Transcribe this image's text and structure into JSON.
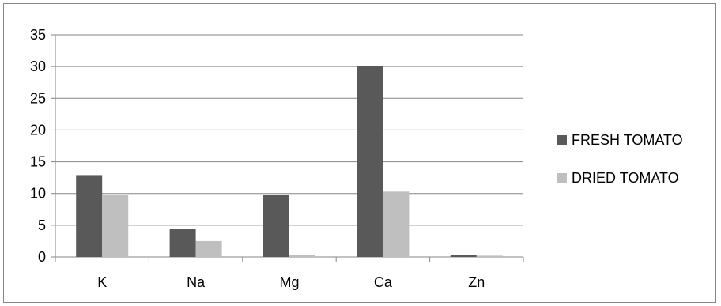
{
  "chart_data": {
    "type": "bar",
    "title": "",
    "xlabel": "",
    "ylabel": "",
    "categories": [
      "K",
      "Na",
      "Mg",
      "Ca",
      "Zn"
    ],
    "series": [
      {
        "name": "FRESH TOMATO",
        "color": "#595959",
        "values": [
          12.9,
          4.4,
          9.8,
          30.1,
          0.3
        ]
      },
      {
        "name": "DRIED TOMATO",
        "color": "#bfbfbf",
        "values": [
          9.8,
          2.5,
          0.3,
          10.3,
          0.2
        ]
      }
    ],
    "ylim": [
      0,
      35
    ],
    "yticks": [
      0,
      5,
      10,
      15,
      20,
      25,
      30,
      35
    ],
    "grid": true,
    "legend": "right"
  }
}
